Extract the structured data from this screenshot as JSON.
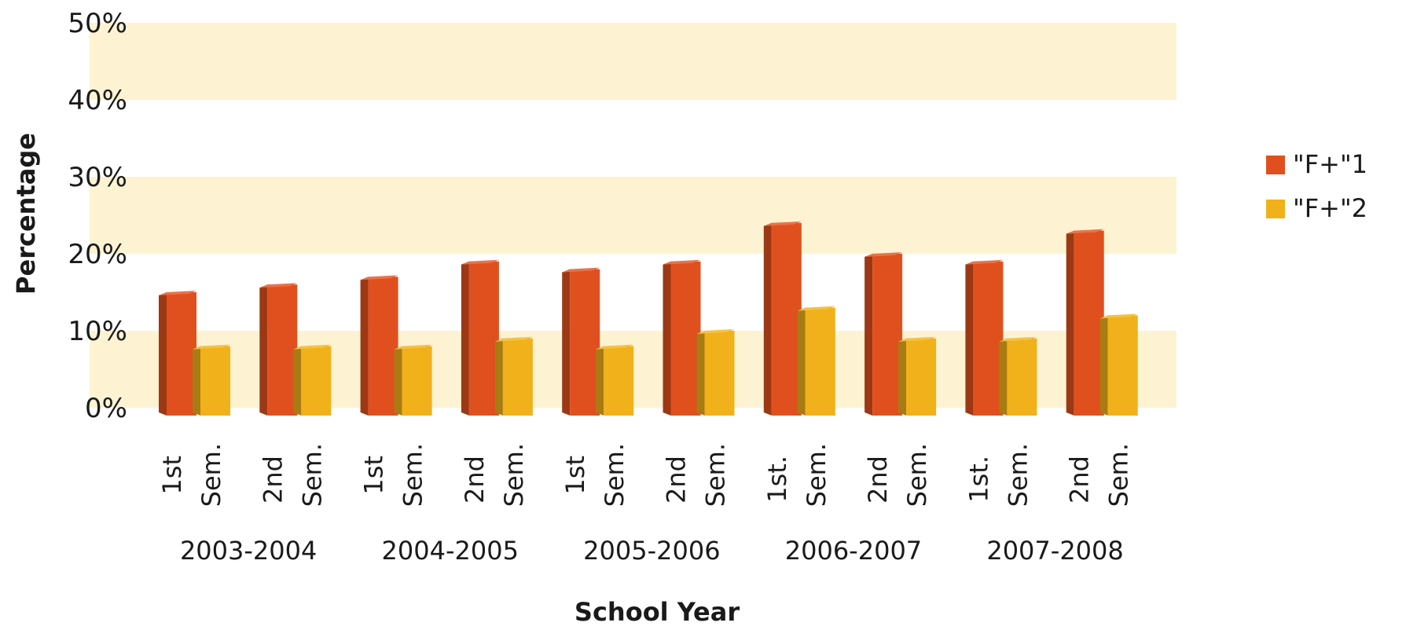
{
  "chart_data": {
    "type": "bar",
    "title": "",
    "xlabel": "School Year",
    "ylabel": "Percentage",
    "ylim": [
      0,
      50
    ],
    "y_ticks": [
      "0%",
      "10%",
      "20%",
      "30%",
      "40%",
      "50%"
    ],
    "categories": [
      "1st Sem.",
      "2nd Sem.",
      "1st Sem.",
      "2nd Sem.",
      "1st Sem.",
      "2nd Sem.",
      "1st. Sem.",
      "2nd Sem.",
      "1st. Sem.",
      "2nd Sem."
    ],
    "groups": [
      "2003-2004",
      "2004-2005",
      "2005-2006",
      "2006-2007",
      "2007-2008"
    ],
    "series": [
      {
        "name": "\"F+\"1",
        "color": "#e0501e",
        "values": [
          15,
          16,
          17,
          19,
          18,
          19,
          24,
          20,
          19,
          23
        ]
      },
      {
        "name": "\"F+\"2",
        "color": "#f0b11a",
        "values": [
          8,
          8,
          8,
          9,
          8,
          10,
          13,
          9,
          9,
          12
        ]
      }
    ],
    "grid": "alternating bands",
    "band_color": "#fdf3d2",
    "legend_position": "right"
  }
}
